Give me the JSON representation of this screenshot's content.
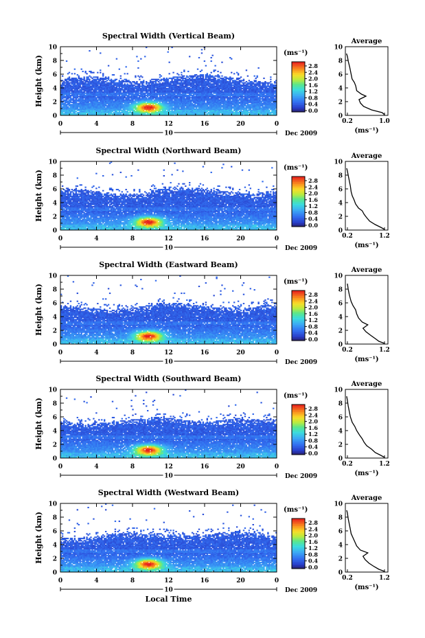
{
  "chart_data": [
    {
      "type": "heatmap",
      "title": "Spectral Width (Vertical Beam)",
      "xlabel": "",
      "ylabel": "Height (km)",
      "xlim": [
        0,
        24
      ],
      "ylim": [
        0,
        10
      ],
      "xticks": [
        "0",
        "4",
        "8",
        "12",
        "16",
        "20",
        "0"
      ],
      "yticks": [
        "0",
        "2",
        "4",
        "6",
        "8",
        "10"
      ],
      "date_label": "10",
      "month_label": "Dec 2009",
      "colorbar": {
        "unit": "(ms⁻¹)",
        "ticks": [
          "0.0",
          "0.4",
          "0.8",
          "1.2",
          "1.6",
          "2.0",
          "2.4",
          "2.8"
        ],
        "range": [
          0,
          2.8
        ]
      },
      "echo_top_km": 5.3,
      "average": {
        "title": "Average",
        "xlabel": "(ms⁻¹)",
        "xticks": [
          "0.2",
          "1.0"
        ],
        "xlim": [
          0.2,
          1.0
        ],
        "profile": [
          [
            1.0,
            0.1
          ],
          [
            0.95,
            0.4
          ],
          [
            0.72,
            0.8
          ],
          [
            0.55,
            1.3
          ],
          [
            0.48,
            1.8
          ],
          [
            0.45,
            2.3
          ],
          [
            0.6,
            2.8
          ],
          [
            0.5,
            3.1
          ],
          [
            0.4,
            3.6
          ],
          [
            0.38,
            4.3
          ],
          [
            0.35,
            4.8
          ],
          [
            0.3,
            5.3
          ],
          [
            0.28,
            6.0
          ],
          [
            0.25,
            7.0
          ],
          [
            0.22,
            7.8
          ],
          [
            0.2,
            8.6
          ],
          [
            0.18,
            9.0
          ]
        ]
      }
    },
    {
      "type": "heatmap",
      "title": "Spectral Width (Northward Beam)",
      "xlabel": "",
      "ylabel": "Height (km)",
      "xlim": [
        0,
        24
      ],
      "ylim": [
        0,
        10
      ],
      "xticks": [
        "0",
        "4",
        "8",
        "12",
        "16",
        "20",
        "0"
      ],
      "yticks": [
        "0",
        "2",
        "4",
        "6",
        "8",
        "10"
      ],
      "date_label": "10",
      "month_label": "Dec 2009",
      "colorbar": {
        "unit": "(ms⁻¹)",
        "ticks": [
          "0.0",
          "0.4",
          "0.8",
          "1.2",
          "1.6",
          "2.0",
          "2.4",
          "2.8"
        ],
        "range": [
          0,
          2.8
        ]
      },
      "echo_top_km": 5.6,
      "average": {
        "title": "Average",
        "xlabel": "(ms⁻¹)",
        "xticks": [
          "0.2",
          "1.2"
        ],
        "xlim": [
          0.2,
          1.2
        ],
        "profile": [
          [
            1.2,
            0.1
          ],
          [
            1.1,
            0.4
          ],
          [
            0.95,
            0.8
          ],
          [
            0.8,
            1.3
          ],
          [
            0.72,
            1.8
          ],
          [
            0.65,
            2.3
          ],
          [
            0.6,
            2.8
          ],
          [
            0.5,
            3.2
          ],
          [
            0.42,
            3.8
          ],
          [
            0.38,
            4.4
          ],
          [
            0.33,
            5.0
          ],
          [
            0.3,
            5.6
          ],
          [
            0.28,
            6.4
          ],
          [
            0.25,
            7.2
          ],
          [
            0.22,
            8.0
          ],
          [
            0.2,
            8.6
          ],
          [
            0.18,
            9.0
          ]
        ]
      }
    },
    {
      "type": "heatmap",
      "title": "Spectral Width (Eastward Beam)",
      "xlabel": "",
      "ylabel": "Height (km)",
      "xlim": [
        0,
        24
      ],
      "ylim": [
        0,
        10
      ],
      "xticks": [
        "0",
        "4",
        "8",
        "12",
        "16",
        "20",
        "0"
      ],
      "yticks": [
        "0",
        "2",
        "4",
        "6",
        "8",
        "10"
      ],
      "date_label": "10",
      "month_label": "Dec 2009",
      "colorbar": {
        "unit": "(ms⁻¹)",
        "ticks": [
          "0.0",
          "0.4",
          "0.8",
          "1.2",
          "1.6",
          "2.0",
          "2.4",
          "2.8"
        ],
        "range": [
          0,
          2.8
        ]
      },
      "echo_top_km": 5.4,
      "average": {
        "title": "Average",
        "xlabel": "(ms⁻¹)",
        "xticks": [
          "0.2",
          "1.2"
        ],
        "xlim": [
          0.2,
          1.2
        ],
        "profile": [
          [
            1.2,
            0.1
          ],
          [
            1.05,
            0.4
          ],
          [
            0.95,
            0.8
          ],
          [
            0.82,
            1.3
          ],
          [
            0.7,
            1.8
          ],
          [
            0.62,
            2.3
          ],
          [
            0.75,
            2.8
          ],
          [
            0.6,
            3.2
          ],
          [
            0.5,
            3.8
          ],
          [
            0.45,
            4.4
          ],
          [
            0.42,
            5.0
          ],
          [
            0.35,
            5.6
          ],
          [
            0.3,
            6.2
          ],
          [
            0.28,
            6.6
          ],
          [
            0.25,
            7.2
          ],
          [
            0.22,
            8.0
          ],
          [
            0.2,
            8.8
          ]
        ]
      }
    },
    {
      "type": "heatmap",
      "title": "Spectral Width (Southward Beam)",
      "xlabel": "",
      "ylabel": "Height (km)",
      "xlim": [
        0,
        24
      ],
      "ylim": [
        0,
        10
      ],
      "xticks": [
        "0",
        "4",
        "8",
        "12",
        "16",
        "20",
        "0"
      ],
      "yticks": [
        "0",
        "2",
        "4",
        "6",
        "8",
        "10"
      ],
      "date_label": "10",
      "month_label": "Dec 2009",
      "colorbar": {
        "unit": "(ms⁻¹)",
        "ticks": [
          "0.0",
          "0.4",
          "0.8",
          "1.2",
          "1.6",
          "2.0",
          "2.4",
          "2.8"
        ],
        "range": [
          0,
          2.8
        ]
      },
      "echo_top_km": 5.4,
      "average": {
        "title": "Average",
        "xlabel": "(ms⁻¹)",
        "xticks": [
          "0.2",
          "1.2"
        ],
        "xlim": [
          0.2,
          1.2
        ],
        "profile": [
          [
            1.2,
            0.1
          ],
          [
            1.1,
            0.4
          ],
          [
            0.95,
            0.8
          ],
          [
            0.85,
            1.3
          ],
          [
            0.72,
            1.8
          ],
          [
            0.65,
            2.3
          ],
          [
            0.6,
            2.8
          ],
          [
            0.52,
            3.4
          ],
          [
            0.45,
            4.0
          ],
          [
            0.4,
            4.6
          ],
          [
            0.33,
            5.2
          ],
          [
            0.28,
            6.0
          ],
          [
            0.25,
            6.8
          ],
          [
            0.22,
            7.6
          ],
          [
            0.2,
            8.4
          ],
          [
            0.18,
            9.0
          ]
        ]
      }
    },
    {
      "type": "heatmap",
      "title": "Spectral Width (Westward Beam)",
      "xlabel": "Local Time",
      "ylabel": "Height (km)",
      "xlim": [
        0,
        24
      ],
      "ylim": [
        0,
        10
      ],
      "xticks": [
        "0",
        "4",
        "8",
        "12",
        "16",
        "20",
        "0"
      ],
      "yticks": [
        "0",
        "2",
        "4",
        "6",
        "8",
        "10"
      ],
      "date_label": "10",
      "month_label": "Dec 2009",
      "colorbar": {
        "unit": "(ms⁻¹)",
        "ticks": [
          "0.0",
          "0.4",
          "0.8",
          "1.2",
          "1.6",
          "2.0",
          "2.4",
          "2.8"
        ],
        "range": [
          0,
          2.8
        ]
      },
      "echo_top_km": 5.3,
      "average": {
        "title": "Average",
        "xlabel": "(ms⁻¹)",
        "xticks": [
          "0.2",
          "1.2"
        ],
        "xlim": [
          0.2,
          1.2
        ],
        "profile": [
          [
            1.2,
            0.1
          ],
          [
            1.05,
            0.4
          ],
          [
            0.92,
            0.8
          ],
          [
            0.78,
            1.3
          ],
          [
            0.68,
            1.8
          ],
          [
            0.62,
            2.3
          ],
          [
            0.75,
            2.8
          ],
          [
            0.55,
            3.2
          ],
          [
            0.45,
            3.8
          ],
          [
            0.4,
            4.4
          ],
          [
            0.35,
            5.0
          ],
          [
            0.3,
            5.6
          ],
          [
            0.28,
            6.2
          ],
          [
            0.25,
            7.0
          ],
          [
            0.22,
            7.8
          ],
          [
            0.2,
            8.6
          ],
          [
            0.18,
            9.0
          ]
        ]
      }
    }
  ]
}
